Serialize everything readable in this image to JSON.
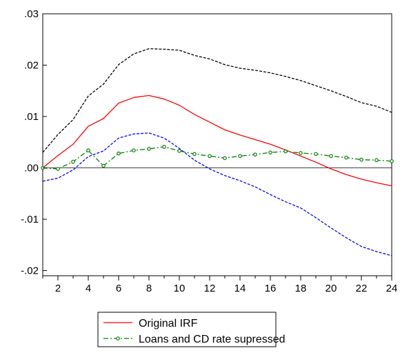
{
  "chart_data": {
    "type": "line",
    "x": [
      1,
      2,
      3,
      4,
      5,
      6,
      7,
      8,
      9,
      10,
      11,
      12,
      13,
      14,
      15,
      16,
      17,
      18,
      19,
      20,
      21,
      22,
      23,
      24
    ],
    "xlim": [
      1,
      24
    ],
    "ylim": [
      -0.021,
      0.03
    ],
    "x_tick_labels": [
      {
        "value": 2,
        "label": "2"
      },
      {
        "value": 4,
        "label": "4"
      },
      {
        "value": 6,
        "label": "6"
      },
      {
        "value": 8,
        "label": "8"
      },
      {
        "value": 10,
        "label": "10"
      },
      {
        "value": 12,
        "label": "12"
      },
      {
        "value": 14,
        "label": "14"
      },
      {
        "value": 16,
        "label": "16"
      },
      {
        "value": 18,
        "label": "18"
      },
      {
        "value": 20,
        "label": "20"
      },
      {
        "value": 22,
        "label": "22"
      },
      {
        "value": 24,
        "label": "24"
      }
    ],
    "y_tick_labels": [
      {
        "value": 0.03,
        "label": ".03"
      },
      {
        "value": 0.02,
        "label": ".02"
      },
      {
        "value": 0.01,
        "label": ".01"
      },
      {
        "value": 0.0,
        "label": ".00"
      },
      {
        "value": -0.01,
        "label": "-.01"
      },
      {
        "value": -0.02,
        "label": "-.02"
      }
    ],
    "zero_line": true,
    "legend_position": "bottom-center",
    "series": [
      {
        "name": "Original IRF",
        "color": "#ff0000",
        "style": "solid",
        "in_legend": true,
        "values": [
          0.0,
          0.0024,
          0.0046,
          0.0081,
          0.0096,
          0.0126,
          0.0137,
          0.0141,
          0.0134,
          0.0122,
          0.0104,
          0.0089,
          0.0074,
          0.0064,
          0.0055,
          0.0046,
          0.0035,
          0.0023,
          0.0011,
          -0.0002,
          -0.0013,
          -0.0022,
          -0.0029,
          -0.0035
        ]
      },
      {
        "color": "#000000",
        "style": "dashed",
        "in_legend": false,
        "values": [
          0.003,
          0.0065,
          0.0094,
          0.014,
          0.0163,
          0.0201,
          0.0222,
          0.0232,
          0.0231,
          0.0229,
          0.0219,
          0.0212,
          0.0201,
          0.0194,
          0.019,
          0.0185,
          0.0178,
          0.017,
          0.016,
          0.015,
          0.0139,
          0.0127,
          0.012,
          0.0108
        ]
      },
      {
        "color": "#0000ff",
        "style": "dashed",
        "in_legend": false,
        "values": [
          -0.0026,
          -0.002,
          -0.0004,
          0.0022,
          0.0033,
          0.0058,
          0.0066,
          0.0068,
          0.0058,
          0.0038,
          0.0015,
          -0.0002,
          -0.0015,
          -0.0025,
          -0.0037,
          -0.0052,
          -0.0066,
          -0.0078,
          -0.0097,
          -0.0117,
          -0.0136,
          -0.0153,
          -0.0163,
          -0.0171
        ]
      },
      {
        "name": "Loans and CD rate supressed",
        "color": "#008000",
        "style": "dash-dot-marker",
        "in_legend": true,
        "values": [
          0.0,
          -0.0002,
          0.0012,
          0.0034,
          0.0004,
          0.0028,
          0.0034,
          0.0037,
          0.0041,
          0.0033,
          0.0027,
          0.0023,
          0.0019,
          0.0023,
          0.0026,
          0.003,
          0.0032,
          0.0029,
          0.0027,
          0.0023,
          0.002,
          0.0016,
          0.0015,
          0.0013
        ]
      }
    ]
  }
}
